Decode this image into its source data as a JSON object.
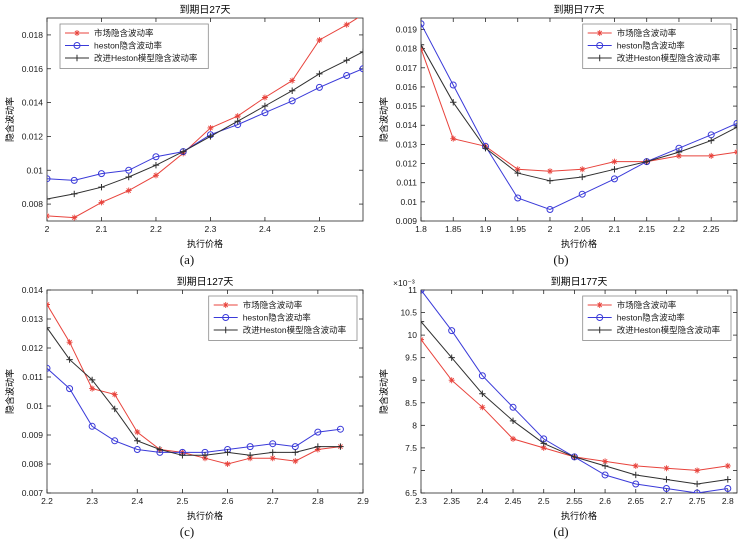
{
  "figure": {
    "background": "#ffffff",
    "captions": [
      "(a)",
      "(b)",
      "(c)",
      "(d)"
    ]
  },
  "colors": {
    "market": "#e8433c",
    "heston": "#3a3ad9",
    "improved": "#2f2f2f",
    "axis": "#262626"
  },
  "chart_data": [
    {
      "type": "line",
      "title": "到期日27天",
      "xlabel": "执行价格",
      "ylabel": "隐含波动率",
      "xlim": [
        2.0,
        2.58
      ],
      "ylim": [
        0.007,
        0.019
      ],
      "legend_pos": "nw",
      "xticks": {
        "values": [
          2,
          2.1,
          2.2,
          2.3,
          2.4,
          2.5
        ],
        "labels": [
          "2",
          "2.1",
          "2.2",
          "2.3",
          "2.4",
          "2.5"
        ]
      },
      "yticks": {
        "values": [
          0.008,
          0.01,
          0.012,
          0.014,
          0.016,
          0.018
        ],
        "labels": [
          "0.008",
          "0.01",
          "0.012",
          "0.014",
          "0.016",
          "0.018"
        ]
      },
      "x": [
        2,
        2.05,
        2.1,
        2.15,
        2.2,
        2.25,
        2.3,
        2.35,
        2.4,
        2.45,
        2.5,
        2.55,
        2.58
      ],
      "series": [
        {
          "name": "市场隐含波动率",
          "marker": "star",
          "color": "#e8433c",
          "values": [
            0.0073,
            0.0072,
            0.0081,
            0.0088,
            0.0097,
            0.011,
            0.0125,
            0.0132,
            0.0143,
            0.0153,
            0.0177,
            0.0186,
            0.0192
          ]
        },
        {
          "name": "heston隐含波动率",
          "marker": "circle",
          "color": "#3a3ad9",
          "values": [
            0.0095,
            0.0094,
            0.0098,
            0.01,
            0.0108,
            0.0111,
            0.0121,
            0.0127,
            0.0134,
            0.0141,
            0.0149,
            0.0156,
            0.016
          ]
        },
        {
          "name": "改进Heston模型隐含波动率",
          "marker": "plus",
          "color": "#2f2f2f",
          "values": [
            0.0083,
            0.0086,
            0.009,
            0.0096,
            0.0103,
            0.0111,
            0.012,
            0.0129,
            0.0138,
            0.0147,
            0.0157,
            0.0165,
            0.017
          ]
        }
      ]
    },
    {
      "type": "line",
      "title": "到期日77天",
      "xlabel": "执行价格",
      "ylabel": "隐含波动率",
      "xlim": [
        1.8,
        2.29
      ],
      "ylim": [
        0.009,
        0.0196
      ],
      "legend_pos": "ne",
      "xticks": {
        "values": [
          1.8,
          1.85,
          1.9,
          1.95,
          2,
          2.05,
          2.1,
          2.15,
          2.2,
          2.25
        ],
        "labels": [
          "1.8",
          "1.85",
          "1.9",
          "1.95",
          "2",
          "2.05",
          "2.1",
          "2.15",
          "2.2",
          "2.25"
        ]
      },
      "yticks": {
        "values": [
          0.009,
          0.01,
          0.011,
          0.012,
          0.013,
          0.014,
          0.015,
          0.016,
          0.017,
          0.018,
          0.019
        ],
        "labels": [
          "0.009",
          "0.01",
          "0.011",
          "0.012",
          "0.013",
          "0.014",
          "0.015",
          "0.016",
          "0.017",
          "0.018",
          "0.019"
        ]
      },
      "x": [
        1.8,
        1.85,
        1.9,
        1.95,
        2,
        2.05,
        2.1,
        2.15,
        2.2,
        2.25,
        2.29
      ],
      "series": [
        {
          "name": "市场隐含波动率",
          "marker": "star",
          "color": "#e8433c",
          "values": [
            0.018,
            0.0133,
            0.0129,
            0.0117,
            0.0116,
            0.0117,
            0.0121,
            0.0121,
            0.0124,
            0.0124,
            0.0126
          ]
        },
        {
          "name": "heston隐含波动率",
          "marker": "circle",
          "color": "#3a3ad9",
          "values": [
            0.0193,
            0.0161,
            0.0129,
            0.0102,
            0.0096,
            0.0104,
            0.0112,
            0.0121,
            0.0128,
            0.0135,
            0.0141
          ]
        },
        {
          "name": "改进Heston模型隐含波动率",
          "marker": "plus",
          "color": "#2f2f2f",
          "values": [
            0.0182,
            0.0152,
            0.0128,
            0.0115,
            0.0111,
            0.0113,
            0.0117,
            0.0121,
            0.0126,
            0.0132,
            0.0139
          ]
        }
      ]
    },
    {
      "type": "line",
      "title": "到期日127天",
      "xlabel": "执行价格",
      "ylabel": "隐含波动率",
      "xlim": [
        2.2,
        2.9
      ],
      "ylim": [
        0.007,
        0.014
      ],
      "legend_pos": "ne",
      "xticks": {
        "values": [
          2.2,
          2.3,
          2.4,
          2.5,
          2.6,
          2.7,
          2.8,
          2.9
        ],
        "labels": [
          "2.2",
          "2.3",
          "2.4",
          "2.5",
          "2.6",
          "2.7",
          "2.8",
          "2.9"
        ]
      },
      "yticks": {
        "values": [
          0.007,
          0.008,
          0.009,
          0.01,
          0.011,
          0.012,
          0.013,
          0.014
        ],
        "labels": [
          "0.007",
          "0.008",
          "0.009",
          "0.01",
          "0.011",
          "0.012",
          "0.013",
          "0.014"
        ]
      },
      "x": [
        2.2,
        2.25,
        2.3,
        2.35,
        2.4,
        2.45,
        2.5,
        2.55,
        2.6,
        2.65,
        2.7,
        2.75,
        2.8,
        2.85
      ],
      "series": [
        {
          "name": "市场隐含波动率",
          "marker": "star",
          "color": "#e8433c",
          "values": [
            0.0135,
            0.0122,
            0.0106,
            0.0104,
            0.0091,
            0.0085,
            0.0084,
            0.0082,
            0.008,
            0.0082,
            0.0082,
            0.0081,
            0.0085,
            0.0086
          ]
        },
        {
          "name": "heston隐含波动率",
          "marker": "circle",
          "color": "#3a3ad9",
          "values": [
            0.0113,
            0.0106,
            0.0093,
            0.0088,
            0.0085,
            0.0084,
            0.0084,
            0.0084,
            0.0085,
            0.0086,
            0.0087,
            0.0086,
            0.0091,
            0.0092
          ]
        },
        {
          "name": "改进Heston模型隐含波动率",
          "marker": "plus",
          "color": "#2f2f2f",
          "values": [
            0.0127,
            0.0116,
            0.0109,
            0.0099,
            0.0088,
            0.0085,
            0.0083,
            0.0083,
            0.0084,
            0.0083,
            0.0084,
            0.0084,
            0.0086,
            0.0086
          ]
        }
      ]
    },
    {
      "type": "line",
      "title": "到期日177天",
      "xlabel": "执行价格",
      "ylabel": "隐含波动率",
      "y_scale_note": "×10⁻³",
      "xlim": [
        2.3,
        2.815
      ],
      "ylim": [
        0.0065,
        0.011
      ],
      "legend_pos": "ne",
      "xticks": {
        "values": [
          2.3,
          2.35,
          2.4,
          2.45,
          2.5,
          2.55,
          2.6,
          2.65,
          2.7,
          2.75,
          2.8
        ],
        "labels": [
          "2.3",
          "2.35",
          "2.4",
          "2.45",
          "2.5",
          "2.55",
          "2.6",
          "2.65",
          "2.7",
          "2.75",
          "2.8"
        ]
      },
      "yticks": {
        "values": [
          0.0065,
          0.007,
          0.0075,
          0.008,
          0.0085,
          0.009,
          0.0095,
          0.01,
          0.0105,
          0.011
        ],
        "labels": [
          "6.5",
          "7",
          "7.5",
          "8",
          "8.5",
          "9",
          "9.5",
          "10",
          "10.5",
          "11"
        ]
      },
      "x": [
        2.3,
        2.35,
        2.4,
        2.45,
        2.5,
        2.55,
        2.6,
        2.65,
        2.7,
        2.75,
        2.8
      ],
      "series": [
        {
          "name": "市场隐含波动率",
          "marker": "star",
          "color": "#e8433c",
          "values": [
            0.0099,
            0.009,
            0.0084,
            0.0077,
            0.0075,
            0.0073,
            0.0072,
            0.0071,
            0.00705,
            0.007,
            0.0071
          ]
        },
        {
          "name": "heston隐含波动率",
          "marker": "circle",
          "color": "#3a3ad9",
          "values": [
            0.011,
            0.0101,
            0.0091,
            0.0084,
            0.0077,
            0.0073,
            0.0069,
            0.0067,
            0.0066,
            0.0065,
            0.0066
          ]
        },
        {
          "name": "改进Heston模型隐含波动率",
          "marker": "plus",
          "color": "#2f2f2f",
          "values": [
            0.0103,
            0.0095,
            0.0087,
            0.0081,
            0.0076,
            0.0073,
            0.0071,
            0.0069,
            0.0068,
            0.0067,
            0.0068
          ]
        }
      ]
    }
  ]
}
